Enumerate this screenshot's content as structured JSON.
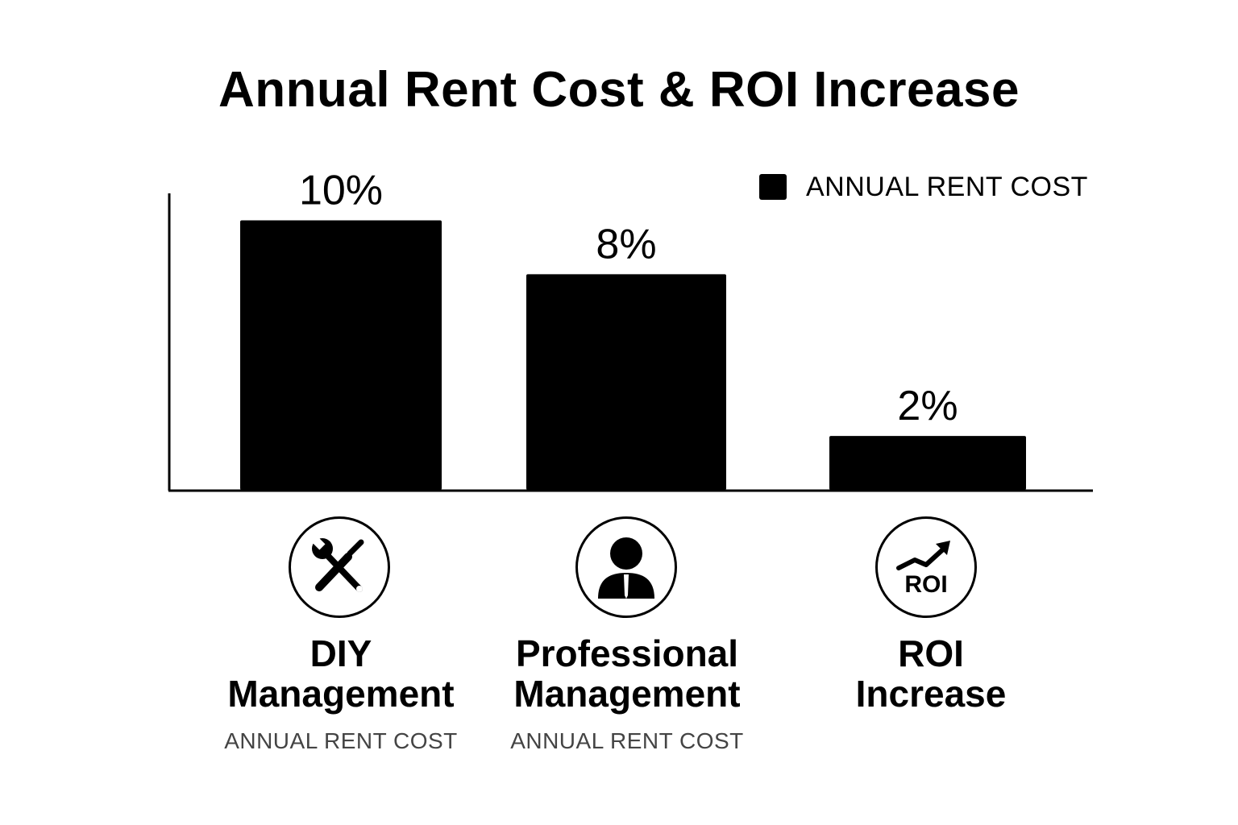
{
  "chart_data": {
    "type": "bar",
    "title": "Annual Rent Cost & ROI Increase",
    "categories": [
      "DIY\nManagement",
      "Professional\nManagement",
      "ROI\nIncrease"
    ],
    "values": [
      10,
      8,
      2
    ],
    "value_labels": [
      "10%",
      "8%",
      "2%"
    ],
    "series": [
      {
        "name": "ANNUAL RENT COST",
        "values": [
          10,
          8,
          2
        ]
      }
    ],
    "ylim": [
      0,
      11
    ],
    "xlabel": "",
    "ylabel": "",
    "grid": false,
    "legend_position": "top-right",
    "bar_color": "#000000"
  },
  "categories_info": [
    {
      "line1": "DIY",
      "line2": "Management",
      "sublabel": "ANNUAL RENT COST",
      "icon": "tools-icon"
    },
    {
      "line1": "Professional",
      "line2": "Management",
      "sublabel": "ANNUAL RENT COST",
      "icon": "person-icon"
    },
    {
      "line1": "ROI",
      "line2": "Increase",
      "sublabel": "",
      "icon": "roi-trend-icon",
      "icon_text": "ROI"
    }
  ]
}
